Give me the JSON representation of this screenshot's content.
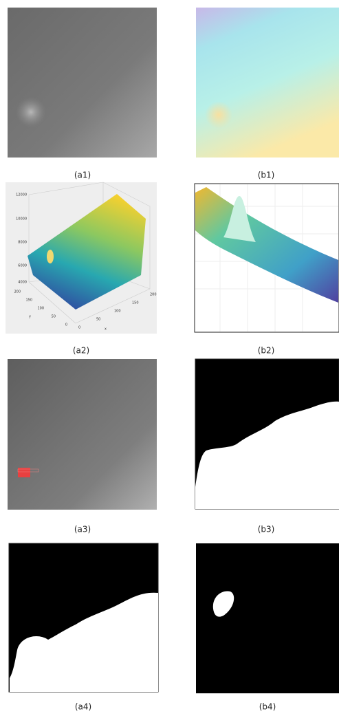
{
  "figure": {
    "captions": [
      "(a1)",
      "(b1)",
      "(a2)",
      "(b2)",
      "(a3)",
      "(b3)",
      "(a4)",
      "(b4)"
    ],
    "a2_plot": {
      "z_ticks": [
        12000,
        10000,
        8000,
        6000,
        4000
      ],
      "y_ticks": [
        200,
        150,
        100,
        50,
        0
      ],
      "x_ticks": [
        0,
        50,
        100,
        150,
        200
      ],
      "y_label": "y",
      "x_label": "x"
    }
  }
}
